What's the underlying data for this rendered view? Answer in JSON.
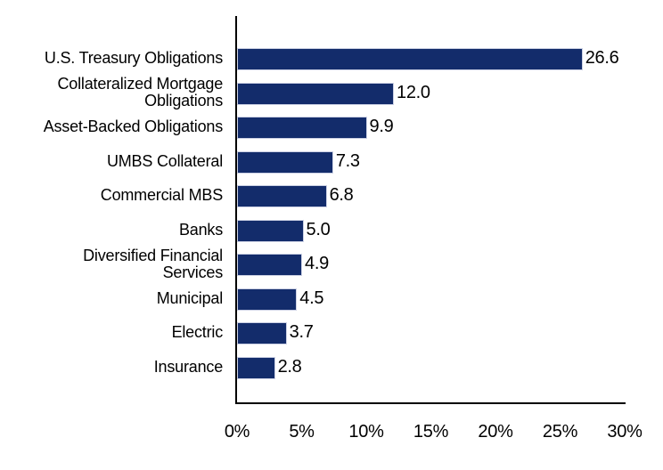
{
  "chart_data": {
    "type": "bar",
    "orientation": "horizontal",
    "title": "",
    "xlabel": "",
    "ylabel": "",
    "categories": [
      "U.S. Treasury Obligations",
      "Collateralized Mortgage Obligations",
      "Asset-Backed Obligations",
      "UMBS Collateral",
      "Commercial MBS",
      "Banks",
      "Diversified Financial Services",
      "Municipal",
      "Electric",
      "Insurance"
    ],
    "category_lines": [
      [
        "U.S. Treasury Obligations"
      ],
      [
        "Collateralized Mortgage",
        "Obligations"
      ],
      [
        "Asset-Backed Obligations"
      ],
      [
        "UMBS Collateral"
      ],
      [
        "Commercial MBS"
      ],
      [
        "Banks"
      ],
      [
        "Diversified Financial",
        "Services"
      ],
      [
        "Municipal"
      ],
      [
        "Electric"
      ],
      [
        "Insurance"
      ]
    ],
    "values": [
      26.6,
      12.0,
      9.9,
      7.3,
      6.8,
      5.0,
      4.9,
      4.5,
      3.7,
      2.8
    ],
    "value_labels": [
      "26.6",
      "12.0",
      "9.9",
      "7.3",
      "6.8",
      "5.0",
      "4.9",
      "4.5",
      "3.7",
      "2.8"
    ],
    "xlim": [
      0,
      30
    ],
    "x_ticks": [
      {
        "value": 0,
        "label": "0%"
      },
      {
        "value": 5,
        "label": "5%"
      },
      {
        "value": 10,
        "label": "10%"
      },
      {
        "value": 15,
        "label": "15%"
      },
      {
        "value": 20,
        "label": "20%"
      },
      {
        "value": 25,
        "label": "25%"
      },
      {
        "value": 30,
        "label": "30%"
      }
    ],
    "grid": false,
    "legend": false,
    "colors": {
      "bar_fill": "#132c6b",
      "bar_border": "#ccd1e4",
      "axis": "#000000",
      "text": "#000000"
    }
  }
}
